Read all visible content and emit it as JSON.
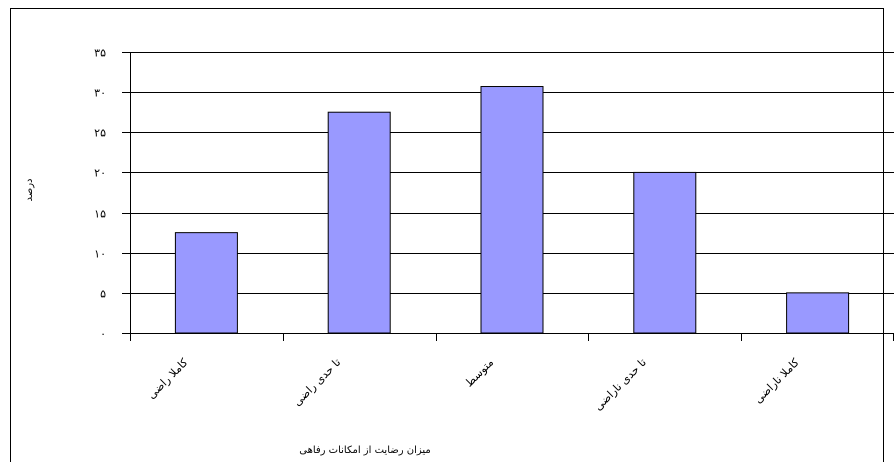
{
  "colors": {
    "bar_fill": "#9999ff",
    "bar_stroke": "#000000",
    "grid": "#000000",
    "frame": "#000000",
    "background": "#ffffff"
  },
  "chart_data": {
    "type": "bar",
    "categories": [
      "کاملا راضی",
      "تا حدی راضی",
      "متوسط",
      "تا حدی ناراضی",
      "کاملا ناراضی"
    ],
    "values": [
      12.5,
      27.5,
      30.7,
      20,
      5
    ],
    "ytick_labels": [
      "۰",
      "۵",
      "۱۰",
      "۱۵",
      "۲۰",
      "۲۵",
      "۳۰",
      "۳۵"
    ],
    "xlabel": "میزان رضایت از امکانات رفاهی",
    "ylabel": "درصد",
    "ylim": [
      0,
      35
    ],
    "grid": true,
    "legend": "none"
  }
}
